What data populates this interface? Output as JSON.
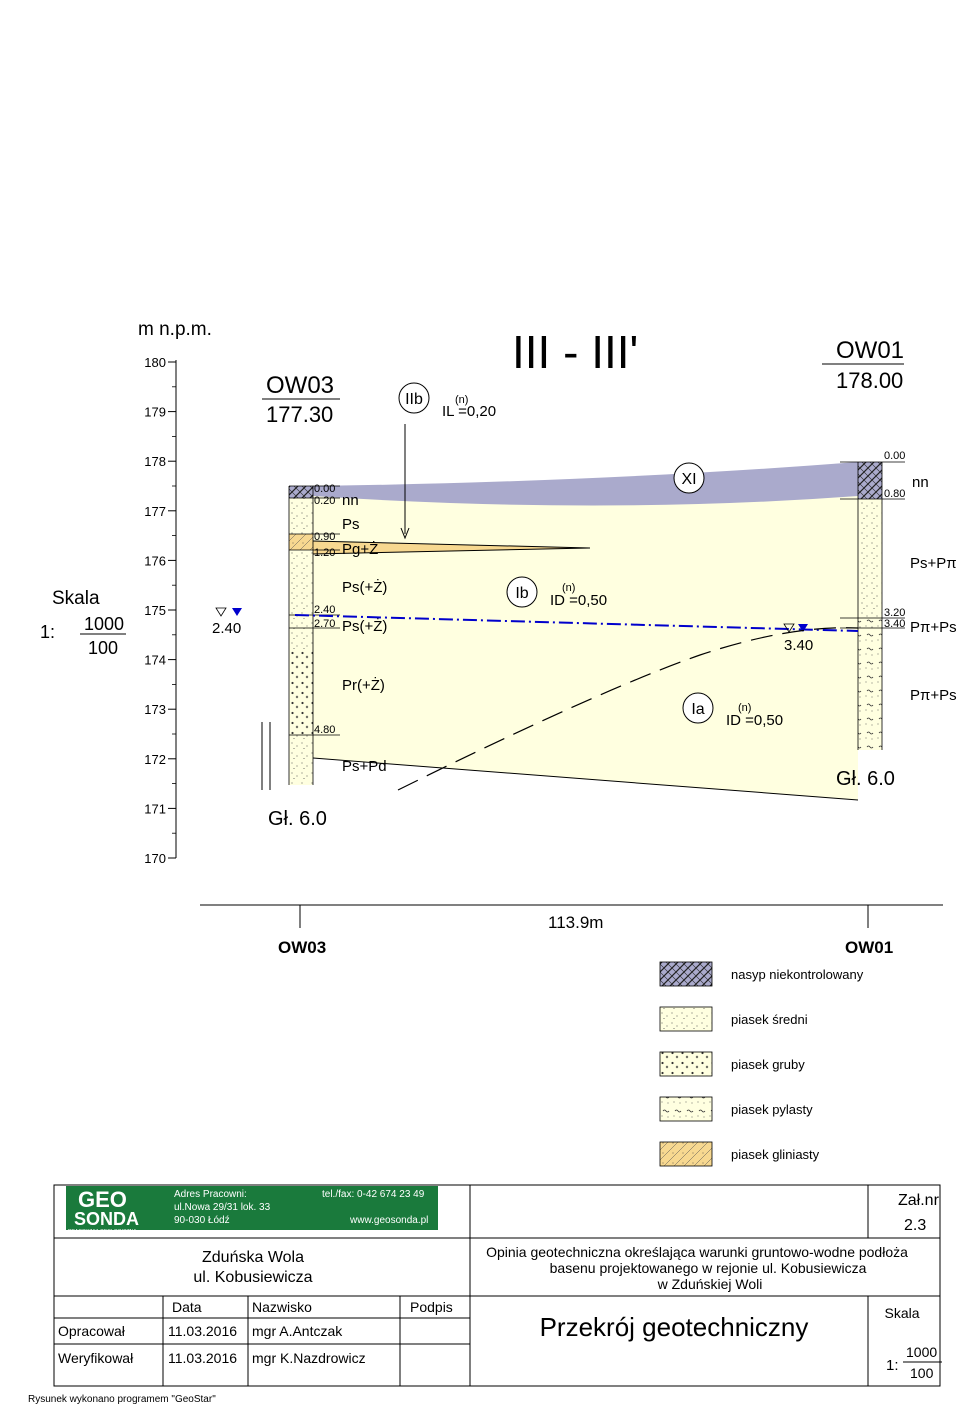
{
  "section": {
    "ylabel": "m n.p.m.",
    "title": "III  -  III'",
    "scale_label": "Skala",
    "scale_prefix": "1:",
    "scale_horizontal": "1000",
    "scale_vertical": "100",
    "axis_ticks": [
      {
        "value": 180,
        "label": "180"
      },
      {
        "value": 179,
        "label": "179"
      },
      {
        "value": 178,
        "label": "178"
      },
      {
        "value": 177,
        "label": "177"
      },
      {
        "value": 176,
        "label": "176"
      },
      {
        "value": 175,
        "label": "175"
      },
      {
        "value": 174,
        "label": "174"
      },
      {
        "value": 173,
        "label": "173"
      },
      {
        "value": 172,
        "label": "172"
      },
      {
        "value": 171,
        "label": "171"
      },
      {
        "value": 170,
        "label": "170"
      }
    ],
    "boreholes": [
      {
        "name": "OW03",
        "elevation": "177.30",
        "water_table": "2.40",
        "final_depth": "Gł. 6.0",
        "depths": [
          {
            "depth": 0.0,
            "label": "0.00"
          },
          {
            "depth": 0.2,
            "label": "0.20"
          },
          {
            "depth": 0.9,
            "label": "0.90"
          },
          {
            "depth": 1.2,
            "label": "1.20"
          },
          {
            "depth": 2.4,
            "label": "2.40"
          },
          {
            "depth": 2.7,
            "label": "2.70"
          },
          {
            "depth": 4.8,
            "label": "4.80"
          }
        ],
        "lithology": [
          "nn",
          "Ps",
          "Pg+Ż",
          "Ps(+Ż)",
          "Ps(+Ż)",
          "Pr(+Ż)",
          "Ps+Pd"
        ]
      },
      {
        "name": "OW01",
        "elevation": "178.00",
        "water_table": "3.40",
        "final_depth": "Gł. 6.0",
        "depths": [
          {
            "depth": 0.0,
            "label": "0.00"
          },
          {
            "depth": 0.8,
            "label": "0.80"
          },
          {
            "depth": 3.2,
            "label": "3.20"
          },
          {
            "depth": 3.4,
            "label": "3.40"
          }
        ],
        "lithology": [
          "nn",
          "Ps+Pπ",
          "Pπ+Ps",
          "Pπ+Ps"
        ]
      }
    ],
    "layer_markers": [
      {
        "id": "IIb",
        "param_sup": "(n)",
        "param": "IL =0,20"
      },
      {
        "id": "XI",
        "param_sup": "",
        "param": ""
      },
      {
        "id": "Ib",
        "param_sup": "(n)",
        "param": "ID =0,50"
      },
      {
        "id": "Ia",
        "param_sup": "(n)",
        "param": "ID =0,50"
      }
    ],
    "distance": "113.9m",
    "legend": [
      {
        "key": "nasyp",
        "label": "nasyp niekontrolowany"
      },
      {
        "key": "sredni",
        "label": "piasek średni"
      },
      {
        "key": "gruby",
        "label": "piasek gruby"
      },
      {
        "key": "pylasty",
        "label": "piasek pylasty"
      },
      {
        "key": "gliniasty",
        "label": "piasek gliniasty"
      }
    ],
    "colors": {
      "fill_nasyp": "#aaaacc",
      "fill_sand": "#ffffe0",
      "fill_clayey": "#f7d890",
      "water_line": "#0000cc"
    }
  },
  "title_block": {
    "logo_top": "GEO",
    "logo_bottom": "SONDA",
    "logo_sub": "PRACOWNIA GEOLOGICZNA",
    "address_label": "Adres Pracowni:",
    "address_line1": "ul.Nowa 29/31 lok. 33",
    "address_line2": "90-030 Łódź",
    "phone": "tel./fax: 0-42 674 23 49",
    "website": "www.geosonda.pl",
    "attachment_label": "Zał.nr",
    "attachment_number": "2.3",
    "location_line1": "Zduńska Wola",
    "location_line2": "ul. Kobusiewicza",
    "description_line1": "Opinia geotechniczna określająca warunki gruntowo-wodne podłoża",
    "description_line2": "basenu projektowanego w rejonie ul. Kobusiewicza",
    "description_line3": "w Zduńskiej Woli",
    "header_date": "Data",
    "header_name": "Nazwisko",
    "header_signature": "Podpis",
    "row1_role": "Opracował",
    "row1_date": "11.03.2016",
    "row1_name": "mgr A.Antczak",
    "row2_role": "Weryfikował",
    "row2_date": "11.03.2016",
    "row2_name": "mgr K.Nazdrowicz",
    "drawing_title": "Przekrój geotechniczny",
    "scale_label": "Skala",
    "scale_prefix": "1:",
    "scale_horizontal": "1000",
    "scale_vertical": "100",
    "footer": "Rysunek wykonano programem \"GeoStar\""
  }
}
